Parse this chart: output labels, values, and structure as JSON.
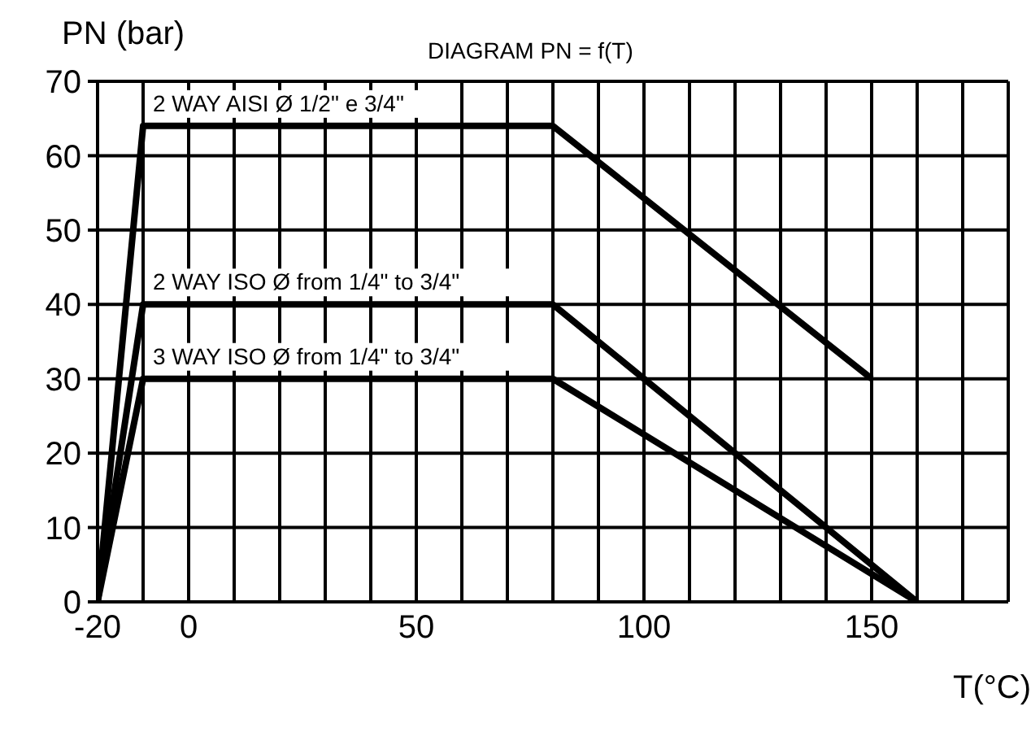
{
  "chart_data": {
    "type": "line",
    "title": "DIAGRAM PN = f(T)",
    "ylabel": "PN (bar)",
    "xlabel": "T(°C)",
    "series": [
      {
        "name": "2 WAY AISI Ø 1/2\" e 3/4\"",
        "color": "#000000",
        "x": [
          -20,
          -10,
          80,
          150
        ],
        "values": [
          0,
          64,
          64,
          30
        ]
      },
      {
        "name": "2 WAY ISO Ø from 1/4\" to 3/4\"",
        "color": "#000000",
        "x": [
          -20,
          -10,
          80,
          160
        ],
        "values": [
          0,
          40,
          40,
          0
        ]
      },
      {
        "name": "3 WAY ISO Ø from 1/4\" to 3/4\"",
        "color": "#000000",
        "x": [
          -20,
          -10,
          80,
          160
        ],
        "values": [
          0,
          30,
          30,
          0
        ]
      }
    ],
    "xlim": [
      -20,
      180
    ],
    "xticks": [
      -20,
      {
        "value": -10,
        "label": null
      },
      0,
      {
        "value": 10,
        "label": null
      },
      {
        "value": 20,
        "label": null
      },
      {
        "value": 30,
        "label": null
      },
      {
        "value": 40,
        "label": null
      },
      50,
      {
        "value": 60,
        "label": null
      },
      {
        "value": 70,
        "label": null
      },
      {
        "value": 80,
        "label": null
      },
      {
        "value": 90,
        "label": null
      },
      100,
      {
        "value": 110,
        "label": null
      },
      {
        "value": 120,
        "label": null
      },
      {
        "value": 130,
        "label": null
      },
      {
        "value": 140,
        "label": null
      },
      150,
      {
        "value": 160,
        "label": null
      },
      {
        "value": 170,
        "label": null
      },
      {
        "value": 180,
        "label": null
      }
    ],
    "ylim": [
      0,
      70
    ],
    "yticks": [
      0,
      10,
      20,
      30,
      40,
      50,
      60,
      70
    ],
    "grid": true,
    "marker": "none",
    "line_style": "solid"
  }
}
